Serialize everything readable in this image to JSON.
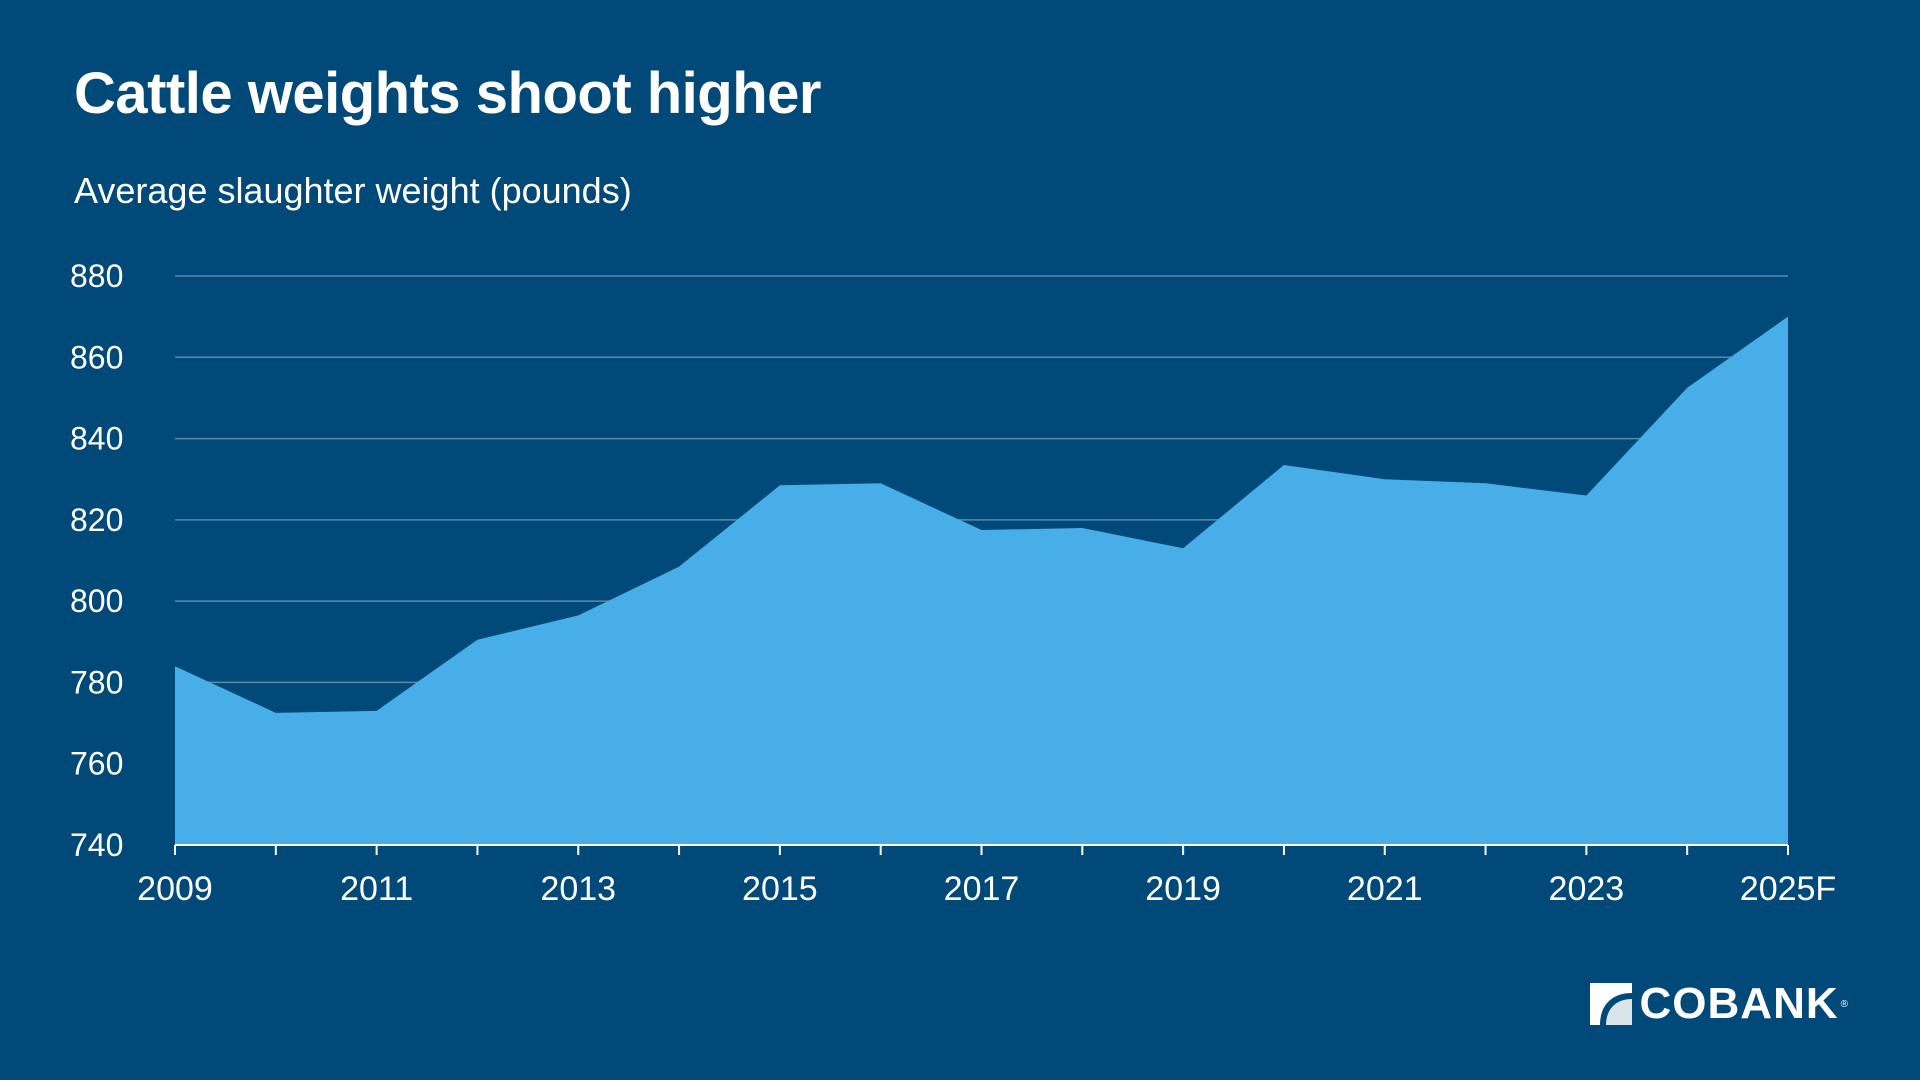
{
  "brand": {
    "name": "COBANK",
    "background_color": "#014979",
    "area_color": "#47AEE8",
    "gridline_color": "#5F88A6"
  },
  "chart_data": {
    "type": "area",
    "title": "Cattle weights shoot higher",
    "subtitle": "Average slaughter weight (pounds)",
    "xlabel": "",
    "ylabel": "",
    "ylim": [
      740,
      880
    ],
    "yticks": [
      740,
      760,
      780,
      800,
      820,
      840,
      860,
      880
    ],
    "x": [
      "2009",
      "2010",
      "2011",
      "2012",
      "2013",
      "2014",
      "2015",
      "2016",
      "2017",
      "2018",
      "2019",
      "2020",
      "2021",
      "2022",
      "2023",
      "2024",
      "2025F"
    ],
    "xtick_labels": [
      "2009",
      "2011",
      "2013",
      "2015",
      "2017",
      "2019",
      "2021",
      "2023",
      "2025F"
    ],
    "values": [
      784,
      772.5,
      773,
      790.5,
      796.5,
      808.5,
      828.5,
      829,
      817.5,
      818,
      813,
      833.5,
      830,
      829,
      826,
      852.5,
      870
    ],
    "grid": true,
    "legend": "none"
  }
}
